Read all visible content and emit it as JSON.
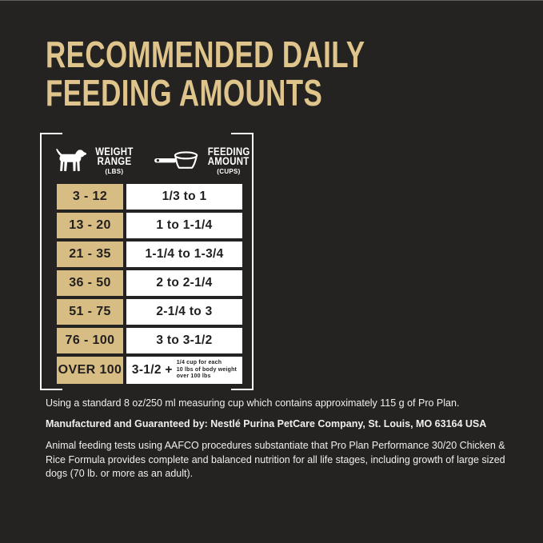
{
  "colors": {
    "background": "#242321",
    "title_gold": "#dfc48c",
    "weight_cell_tan": "#d7bc84",
    "amount_cell_white": "#ffffff",
    "cell_text_dark": "#211f1d",
    "frame_white": "#ffffff",
    "footnote_text": "#f1efec"
  },
  "title": {
    "line1": "RECOMMENDED DAILY",
    "line2": "FEEDING AMOUNTS"
  },
  "table": {
    "header": {
      "weight": {
        "icon": "dog-icon",
        "label_line1": "WEIGHT",
        "label_line2": "RANGE",
        "unit": "(LBS)"
      },
      "feeding": {
        "icon": "measuring-cup-icon",
        "label_line1": "FEEDING",
        "label_line2": "AMOUNT",
        "unit": "(CUPS)"
      }
    },
    "rows": [
      {
        "weight": "3 - 12",
        "amount": "1/3 to 1"
      },
      {
        "weight": "13 - 20",
        "amount": "1 to 1-1/4"
      },
      {
        "weight": "21 - 35",
        "amount": "1-1/4 to 1-3/4"
      },
      {
        "weight": "36 - 50",
        "amount": "2 to 2-1/4"
      },
      {
        "weight": "51 - 75",
        "amount": "2-1/4 to 3"
      },
      {
        "weight": "76 - 100",
        "amount": "3 to 3-1/2"
      },
      {
        "weight": "OVER 100",
        "amount": "3-1/2 +",
        "note_lines": [
          "1/4 cup for each",
          "10 lbs of body weight",
          "over 100 lbs"
        ]
      }
    ]
  },
  "footnotes": {
    "measuring_cup": "Using a standard 8 oz/250 ml measuring cup which contains approximately 115 g of Pro Plan.",
    "manufacturer": "Manufactured and Guaranteed by: Nestlé Purina PetCare Company, St. Louis, MO 63164 USA",
    "aafco": "Animal feeding tests using AAFCO procedures substantiate that Pro Plan Performance 30/20 Chicken & Rice Formula provides complete and balanced nutrition for all life stages, including growth of large sized dogs (70 lb. or more as an adult)."
  },
  "chart_data": {
    "type": "table",
    "title": "RECOMMENDED DAILY FEEDING AMOUNTS",
    "columns": [
      "WEIGHT RANGE (LBS)",
      "FEEDING AMOUNT (CUPS)"
    ],
    "rows": [
      [
        "3 - 12",
        "1/3 to 1"
      ],
      [
        "13 - 20",
        "1 to 1-1/4"
      ],
      [
        "21 - 35",
        "1-1/4 to 1-3/4"
      ],
      [
        "36 - 50",
        "2 to 2-1/4"
      ],
      [
        "51 - 75",
        "2-1/4 to 3"
      ],
      [
        "76 - 100",
        "3 to 3-1/2"
      ],
      [
        "OVER 100",
        "3-1/2 + 1/4 cup for each 10 lbs of body weight over 100 lbs"
      ]
    ]
  }
}
